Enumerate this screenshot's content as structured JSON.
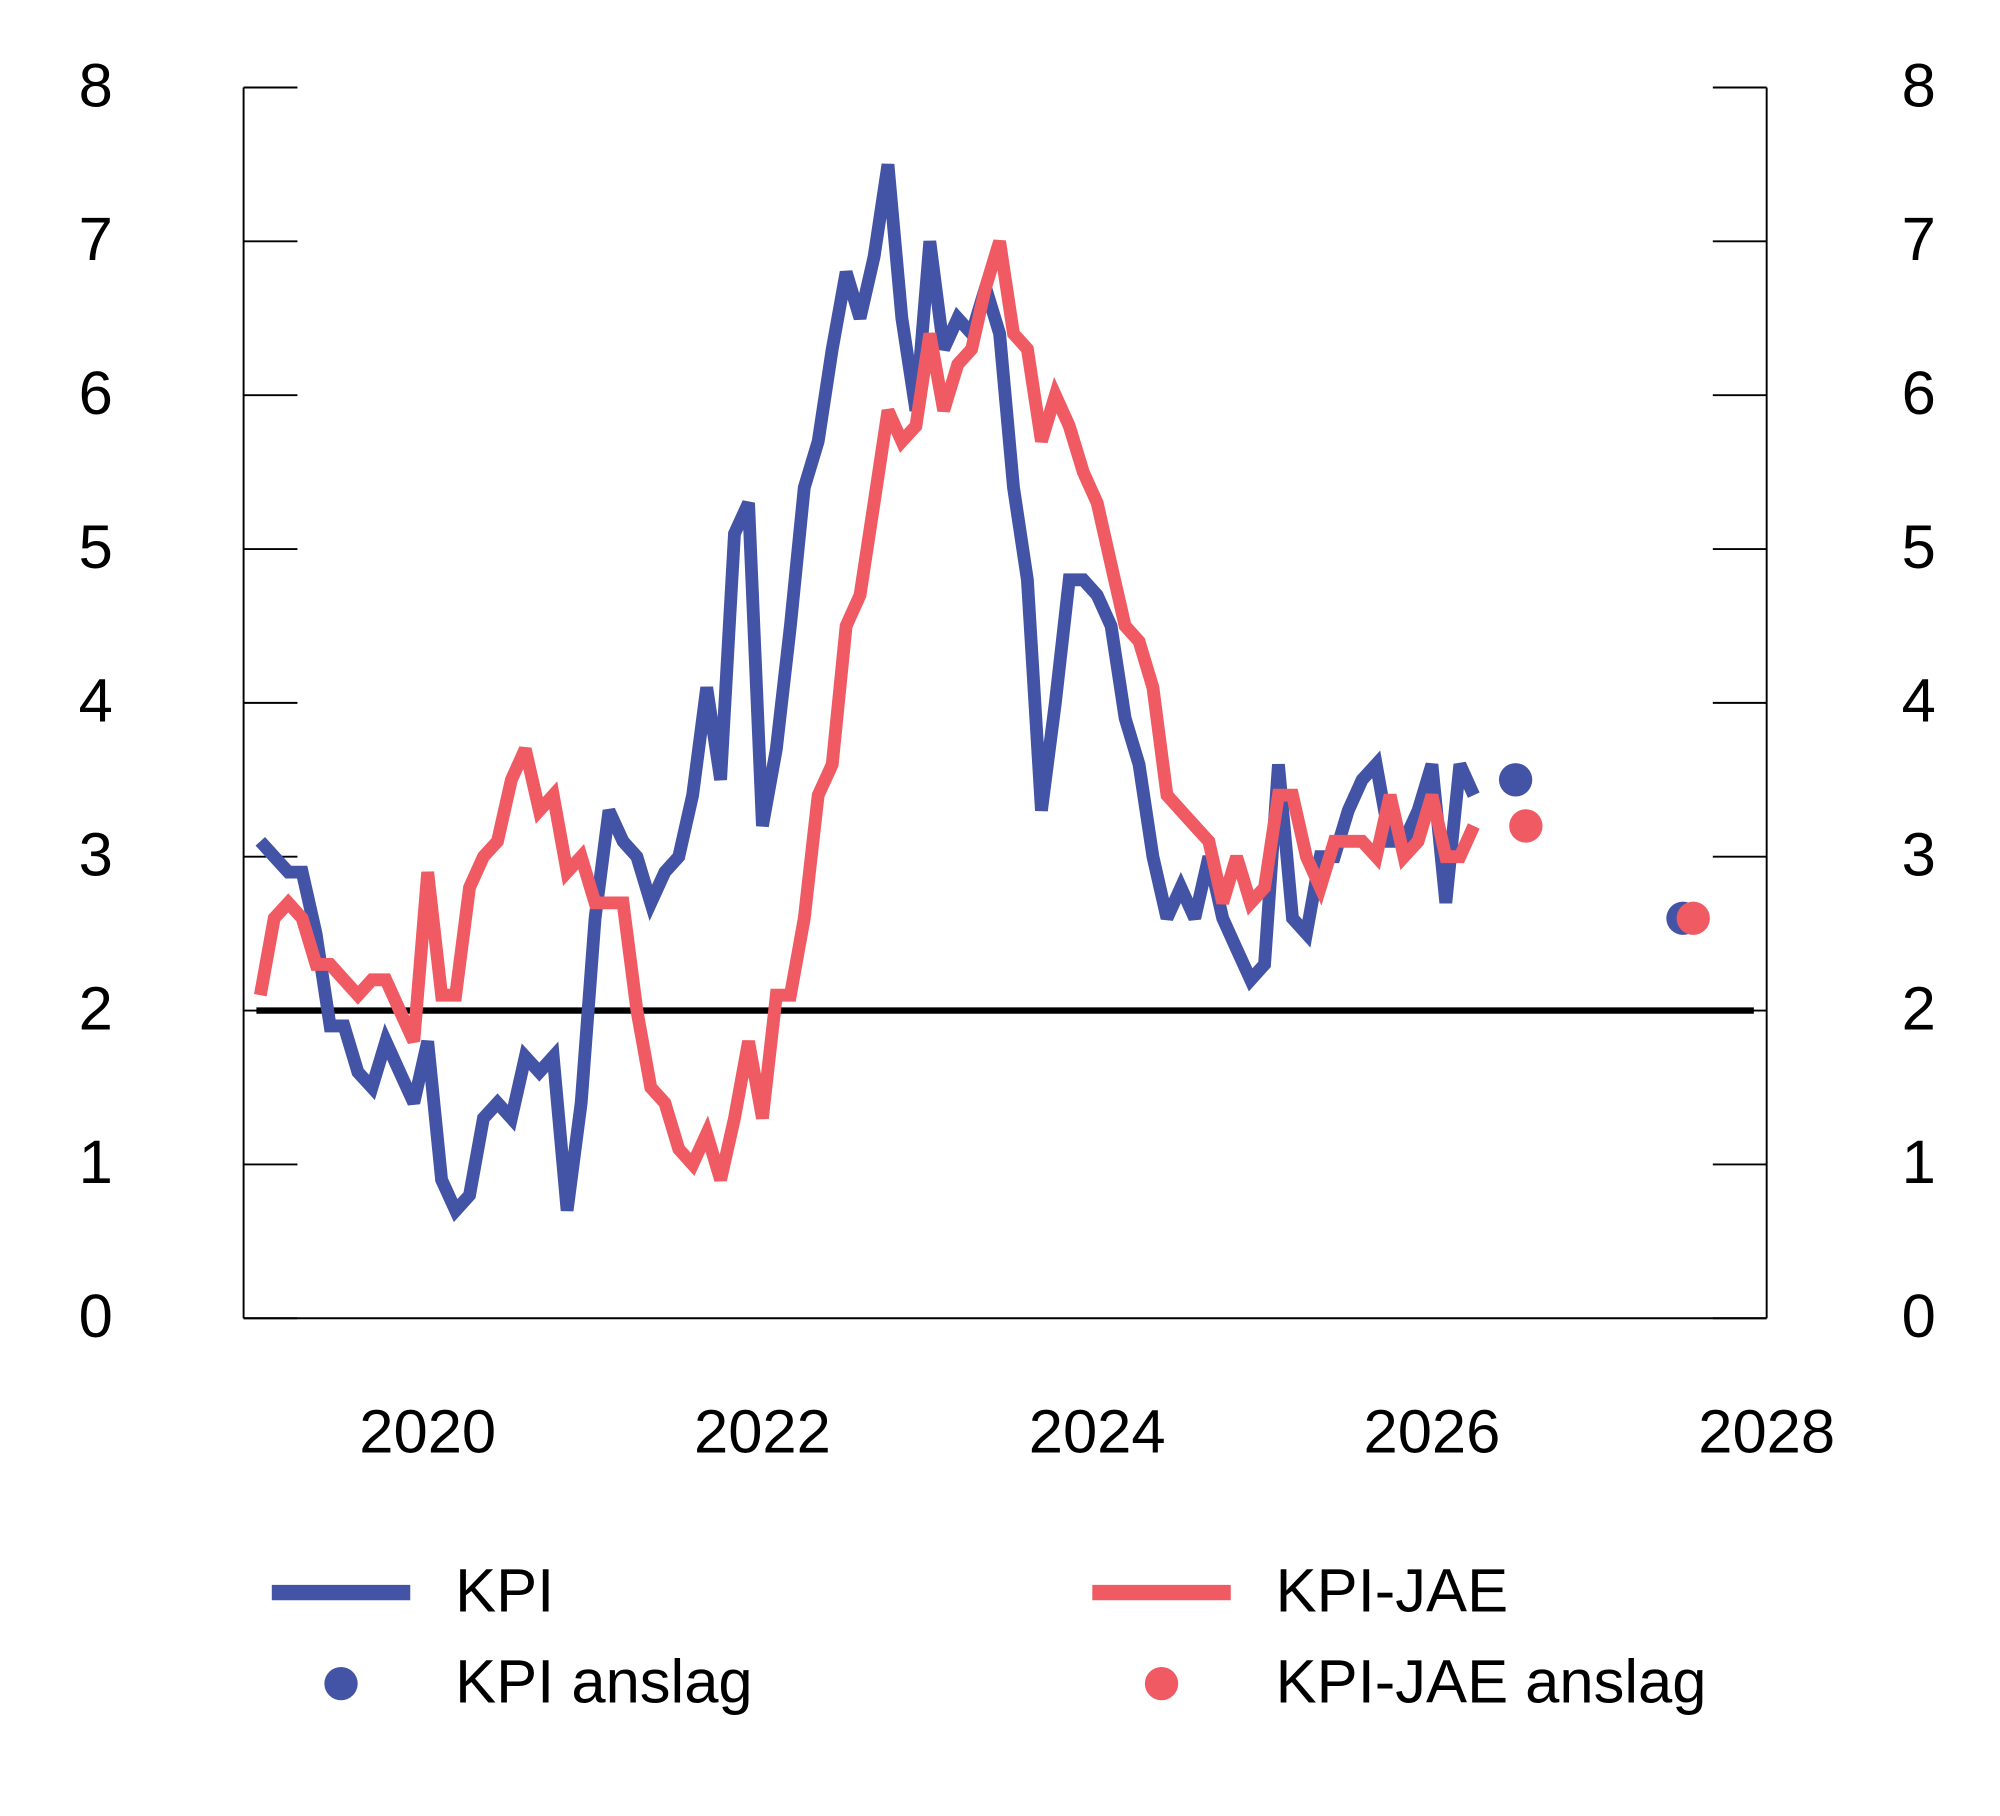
{
  "chart_data": {
    "type": "line",
    "xlim": [
      2018.9,
      2028
    ],
    "xticks": [
      2020,
      2022,
      2024,
      2026,
      2028
    ],
    "ylim": [
      0,
      8
    ],
    "yticks": [
      0,
      1,
      2,
      3,
      4,
      5,
      6,
      7,
      8
    ],
    "y2lim": [
      0,
      8
    ],
    "y2ticks": [
      0,
      1,
      2,
      3,
      4,
      5,
      6,
      7,
      8
    ],
    "reference_line": 2,
    "legend": "bottom",
    "x": [
      2019,
      2019.083,
      2019.167,
      2019.25,
      2019.333,
      2019.417,
      2019.5,
      2019.583,
      2019.667,
      2019.75,
      2019.833,
      2019.917,
      2020,
      2020.083,
      2020.167,
      2020.25,
      2020.333,
      2020.417,
      2020.5,
      2020.583,
      2020.667,
      2020.75,
      2020.833,
      2020.917,
      2021,
      2021.083,
      2021.167,
      2021.25,
      2021.333,
      2021.417,
      2021.5,
      2021.583,
      2021.667,
      2021.75,
      2021.833,
      2021.917,
      2022,
      2022.083,
      2022.167,
      2022.25,
      2022.333,
      2022.417,
      2022.5,
      2022.583,
      2022.667,
      2022.75,
      2022.833,
      2022.917,
      2023,
      2023.083,
      2023.167,
      2023.25,
      2023.333,
      2023.417,
      2023.5,
      2023.583,
      2023.667,
      2023.75,
      2023.833,
      2023.917,
      2024,
      2024.083,
      2024.167,
      2024.25,
      2024.333,
      2024.417,
      2024.5,
      2024.583,
      2024.667,
      2024.75,
      2024.833,
      2024.917,
      2025,
      2025.083,
      2025.167,
      2025.25,
      2025.333,
      2025.417,
      2025.5,
      2025.583,
      2025.667,
      2025.75,
      2025.833,
      2025.917,
      2026,
      2026.083,
      2026.167,
      2026.25
    ],
    "series": [
      {
        "name": "KPI",
        "kind": "line",
        "color": "#4353a5",
        "values": [
          3.1,
          3.0,
          2.9,
          2.9,
          2.5,
          1.9,
          1.9,
          1.6,
          1.5,
          1.8,
          1.6,
          1.4,
          1.8,
          0.9,
          0.7,
          0.8,
          1.3,
          1.4,
          1.3,
          1.7,
          1.6,
          1.7,
          0.7,
          1.4,
          2.6,
          3.3,
          3.1,
          3.0,
          2.7,
          2.9,
          3.0,
          3.4,
          4.1,
          3.5,
          5.1,
          5.3,
          3.2,
          3.7,
          4.5,
          5.4,
          5.7,
          6.3,
          6.8,
          6.5,
          6.9,
          7.5,
          6.5,
          5.9,
          7.0,
          6.3,
          6.5,
          6.4,
          6.7,
          6.4,
          5.4,
          4.8,
          3.3,
          4.0,
          4.8,
          4.8,
          4.7,
          4.5,
          3.9,
          3.6,
          3.0,
          2.6,
          2.8,
          2.6,
          3.0,
          2.6,
          2.4,
          2.2,
          2.3,
          3.6,
          2.6,
          2.5,
          3.0,
          3.0,
          3.3,
          3.5,
          3.6,
          3.1,
          3.1,
          3.3,
          3.6,
          2.7,
          3.6,
          3.4
        ]
      },
      {
        "name": "KPI-JAE",
        "kind": "line",
        "color": "#ef5a63",
        "values": [
          2.1,
          2.6,
          2.7,
          2.6,
          2.3,
          2.3,
          2.2,
          2.1,
          2.2,
          2.2,
          2.0,
          1.8,
          2.9,
          2.1,
          2.1,
          2.8,
          3.0,
          3.1,
          3.5,
          3.7,
          3.3,
          3.4,
          2.9,
          3.0,
          2.7,
          2.7,
          2.7,
          2.0,
          1.5,
          1.4,
          1.1,
          1.0,
          1.2,
          0.9,
          1.3,
          1.8,
          1.3,
          2.1,
          2.1,
          2.6,
          3.4,
          3.6,
          4.5,
          4.7,
          5.3,
          5.9,
          5.7,
          5.8,
          6.4,
          5.9,
          6.2,
          6.3,
          6.7,
          7.0,
          6.4,
          6.3,
          5.7,
          6.0,
          5.8,
          5.5,
          5.3,
          4.9,
          4.5,
          4.4,
          4.1,
          3.4,
          3.3,
          3.2,
          3.1,
          2.7,
          3.0,
          2.7,
          2.8,
          3.4,
          3.4,
          3.0,
          2.8,
          3.1,
          3.1,
          3.1,
          3.0,
          3.4,
          3.0,
          3.1,
          3.4,
          3.0,
          3.0,
          3.2
        ]
      },
      {
        "name": "KPI anslag",
        "kind": "dot",
        "color": "#4353a5",
        "x": [
          2026.5,
          2027.5
        ],
        "values": [
          3.5,
          2.6
        ]
      },
      {
        "name": "KPI-JAE anslag",
        "kind": "dot",
        "color": "#ef5a63",
        "x": [
          2026.5,
          2027.5
        ],
        "values": [
          3.2,
          2.6
        ]
      }
    ]
  }
}
